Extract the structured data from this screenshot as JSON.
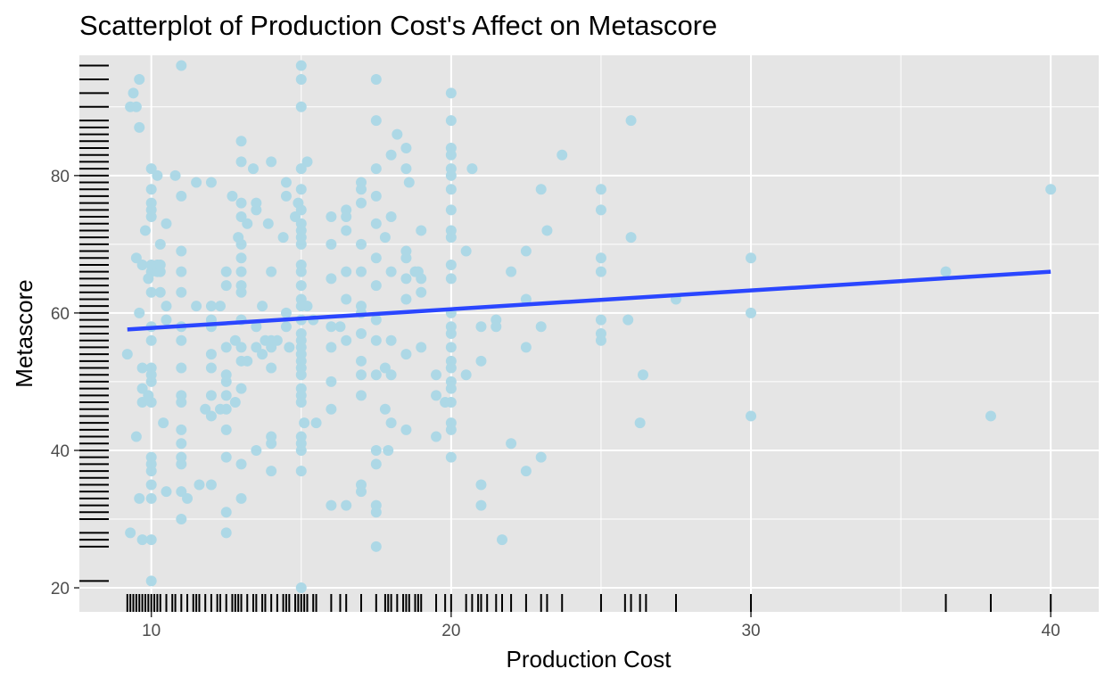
{
  "chart_data": {
    "type": "scatter",
    "title": "Scatterplot of Production Cost's Affect on Metascore",
    "xlabel": "Production Cost",
    "ylabel": "Metascore",
    "xlim": [
      7.6,
      41.6
    ],
    "ylim": [
      16.5,
      97.5
    ],
    "x_ticks": [
      10,
      20,
      30,
      40
    ],
    "y_ticks": [
      20,
      40,
      60,
      80
    ],
    "grid": true,
    "rug": true,
    "colors": {
      "points": "#add8e6",
      "trend": "#2a46ff",
      "panel": "#e5e5e5",
      "grid": "#ffffff",
      "rug": "#000000"
    },
    "trend_line": {
      "x": [
        9.2,
        40
      ],
      "y": [
        57.6,
        66.0
      ]
    },
    "points": [
      [
        9.2,
        54
      ],
      [
        9.3,
        90
      ],
      [
        9.3,
        28
      ],
      [
        9.4,
        92
      ],
      [
        9.5,
        90
      ],
      [
        9.5,
        68
      ],
      [
        9.5,
        42
      ],
      [
        9.6,
        94
      ],
      [
        9.6,
        87
      ],
      [
        9.6,
        60
      ],
      [
        9.6,
        33
      ],
      [
        9.7,
        67
      ],
      [
        9.7,
        52
      ],
      [
        9.7,
        49
      ],
      [
        9.7,
        47
      ],
      [
        9.7,
        27
      ],
      [
        10,
        81
      ],
      [
        10,
        78
      ],
      [
        10,
        76
      ],
      [
        10,
        75
      ],
      [
        10,
        74
      ],
      [
        10,
        67
      ],
      [
        10,
        66
      ],
      [
        10,
        63
      ],
      [
        10,
        58
      ],
      [
        10,
        56
      ],
      [
        10,
        52
      ],
      [
        10,
        51
      ],
      [
        10,
        50
      ],
      [
        10,
        47
      ],
      [
        10,
        39
      ],
      [
        10,
        38
      ],
      [
        10,
        37
      ],
      [
        10,
        35
      ],
      [
        10,
        33
      ],
      [
        10,
        27
      ],
      [
        10,
        21
      ],
      [
        9.9,
        65
      ],
      [
        9.8,
        72
      ],
      [
        9.9,
        48
      ],
      [
        10.2,
        80
      ],
      [
        10.2,
        67
      ],
      [
        10.2,
        66
      ],
      [
        10.3,
        70
      ],
      [
        10.3,
        67
      ],
      [
        10.3,
        66
      ],
      [
        10.3,
        63
      ],
      [
        10.4,
        44
      ],
      [
        10.5,
        73
      ],
      [
        10.5,
        61
      ],
      [
        10.5,
        59
      ],
      [
        10.5,
        34
      ],
      [
        10.8,
        80
      ],
      [
        11,
        96
      ],
      [
        11,
        77
      ],
      [
        11,
        69
      ],
      [
        11,
        66
      ],
      [
        11,
        63
      ],
      [
        11,
        58
      ],
      [
        11,
        56
      ],
      [
        11,
        52
      ],
      [
        11,
        48
      ],
      [
        11,
        47
      ],
      [
        11,
        43
      ],
      [
        11,
        41
      ],
      [
        11,
        39
      ],
      [
        11,
        38
      ],
      [
        11,
        34
      ],
      [
        11,
        30
      ],
      [
        11.2,
        33
      ],
      [
        11.5,
        79
      ],
      [
        11.5,
        61
      ],
      [
        11.6,
        35
      ],
      [
        11.8,
        46
      ],
      [
        12,
        79
      ],
      [
        12,
        61
      ],
      [
        12,
        59
      ],
      [
        12,
        58
      ],
      [
        12,
        54
      ],
      [
        12,
        52
      ],
      [
        12,
        48
      ],
      [
        12,
        45
      ],
      [
        12,
        35
      ],
      [
        12.3,
        61
      ],
      [
        12.3,
        46
      ],
      [
        12.5,
        66
      ],
      [
        12.5,
        64
      ],
      [
        12.5,
        55
      ],
      [
        12.5,
        51
      ],
      [
        12.5,
        50
      ],
      [
        12.5,
        48
      ],
      [
        12.5,
        46
      ],
      [
        12.5,
        43
      ],
      [
        12.5,
        39
      ],
      [
        12.5,
        31
      ],
      [
        12.5,
        28
      ],
      [
        12.7,
        77
      ],
      [
        12.8,
        56
      ],
      [
        12.8,
        47
      ],
      [
        12.9,
        71
      ],
      [
        13,
        85
      ],
      [
        13,
        82
      ],
      [
        13,
        76
      ],
      [
        13,
        74
      ],
      [
        13,
        70
      ],
      [
        13,
        68
      ],
      [
        13,
        66
      ],
      [
        13,
        64
      ],
      [
        13,
        63
      ],
      [
        13,
        59
      ],
      [
        13,
        55
      ],
      [
        13,
        53
      ],
      [
        13,
        49
      ],
      [
        13,
        38
      ],
      [
        13,
        33
      ],
      [
        13.2,
        73
      ],
      [
        13.2,
        53
      ],
      [
        13.4,
        81
      ],
      [
        13.5,
        76
      ],
      [
        13.5,
        75
      ],
      [
        13.5,
        58
      ],
      [
        13.5,
        55
      ],
      [
        13.5,
        40
      ],
      [
        13.7,
        61
      ],
      [
        13.7,
        54
      ],
      [
        13.8,
        56
      ],
      [
        13.9,
        73
      ],
      [
        14,
        82
      ],
      [
        14,
        66
      ],
      [
        14,
        56
      ],
      [
        14,
        55
      ],
      [
        14,
        52
      ],
      [
        14,
        42
      ],
      [
        14,
        41
      ],
      [
        14,
        37
      ],
      [
        14.2,
        56
      ],
      [
        14.4,
        71
      ],
      [
        14.5,
        79
      ],
      [
        14.5,
        77
      ],
      [
        14.5,
        60
      ],
      [
        14.5,
        58
      ],
      [
        14.6,
        55
      ],
      [
        14.8,
        74
      ],
      [
        14.9,
        76
      ],
      [
        15,
        96
      ],
      [
        15,
        94
      ],
      [
        15,
        90
      ],
      [
        15,
        81
      ],
      [
        15,
        78
      ],
      [
        15,
        75
      ],
      [
        15,
        73
      ],
      [
        15,
        72
      ],
      [
        15,
        71
      ],
      [
        15,
        70
      ],
      [
        15,
        67
      ],
      [
        15,
        66
      ],
      [
        15,
        64
      ],
      [
        15,
        62
      ],
      [
        15,
        61
      ],
      [
        15,
        59
      ],
      [
        15,
        57
      ],
      [
        15,
        56
      ],
      [
        15,
        55
      ],
      [
        15,
        54
      ],
      [
        15,
        53
      ],
      [
        15,
        52
      ],
      [
        15,
        51
      ],
      [
        15,
        49
      ],
      [
        15,
        48
      ],
      [
        15,
        47
      ],
      [
        15,
        42
      ],
      [
        15,
        41
      ],
      [
        15,
        40
      ],
      [
        15,
        37
      ],
      [
        15,
        20
      ],
      [
        15.2,
        82
      ],
      [
        15.2,
        61
      ],
      [
        15.1,
        44
      ],
      [
        15.4,
        59
      ],
      [
        15.5,
        44
      ],
      [
        16,
        74
      ],
      [
        16,
        70
      ],
      [
        16,
        65
      ],
      [
        16,
        58
      ],
      [
        16,
        55
      ],
      [
        16,
        50
      ],
      [
        16,
        46
      ],
      [
        16,
        32
      ],
      [
        16.3,
        58
      ],
      [
        16.5,
        75
      ],
      [
        16.5,
        74
      ],
      [
        16.5,
        72
      ],
      [
        16.5,
        66
      ],
      [
        16.5,
        62
      ],
      [
        16.5,
        56
      ],
      [
        16.5,
        32
      ],
      [
        17,
        79
      ],
      [
        17,
        78
      ],
      [
        17,
        76
      ],
      [
        17,
        70
      ],
      [
        17,
        66
      ],
      [
        17,
        61
      ],
      [
        17,
        60
      ],
      [
        17,
        57
      ],
      [
        17,
        53
      ],
      [
        17,
        51
      ],
      [
        17,
        48
      ],
      [
        17,
        35
      ],
      [
        17,
        34
      ],
      [
        17.5,
        94
      ],
      [
        17.5,
        88
      ],
      [
        17.5,
        81
      ],
      [
        17.5,
        77
      ],
      [
        17.5,
        73
      ],
      [
        17.5,
        68
      ],
      [
        17.5,
        64
      ],
      [
        17.5,
        59
      ],
      [
        17.5,
        56
      ],
      [
        17.5,
        51
      ],
      [
        17.5,
        40
      ],
      [
        17.5,
        38
      ],
      [
        17.5,
        32
      ],
      [
        17.5,
        31
      ],
      [
        17.5,
        26
      ],
      [
        17.8,
        71
      ],
      [
        17.8,
        52
      ],
      [
        17.8,
        46
      ],
      [
        17.9,
        40
      ],
      [
        18,
        83
      ],
      [
        18,
        74
      ],
      [
        18,
        66
      ],
      [
        18,
        56
      ],
      [
        18,
        51
      ],
      [
        18,
        44
      ],
      [
        18.2,
        86
      ],
      [
        18.5,
        84
      ],
      [
        18.5,
        81
      ],
      [
        18.5,
        69
      ],
      [
        18.5,
        68
      ],
      [
        18.5,
        65
      ],
      [
        18.5,
        62
      ],
      [
        18.5,
        54
      ],
      [
        18.5,
        43
      ],
      [
        18.6,
        79
      ],
      [
        18.8,
        66
      ],
      [
        18.9,
        66
      ],
      [
        19,
        72
      ],
      [
        19,
        65
      ],
      [
        19,
        63
      ],
      [
        19,
        55
      ],
      [
        19.5,
        51
      ],
      [
        19.5,
        48
      ],
      [
        19.5,
        42
      ],
      [
        19.8,
        47
      ],
      [
        20,
        92
      ],
      [
        20,
        88
      ],
      [
        20,
        84
      ],
      [
        20,
        83
      ],
      [
        20,
        81
      ],
      [
        20,
        80
      ],
      [
        20,
        78
      ],
      [
        20,
        75
      ],
      [
        20,
        72
      ],
      [
        20,
        71
      ],
      [
        20,
        67
      ],
      [
        20,
        65
      ],
      [
        20,
        60
      ],
      [
        20,
        58
      ],
      [
        20,
        57
      ],
      [
        20,
        55
      ],
      [
        20,
        53
      ],
      [
        20,
        52
      ],
      [
        20,
        50
      ],
      [
        20,
        49
      ],
      [
        20,
        47
      ],
      [
        20,
        44
      ],
      [
        20,
        43
      ],
      [
        20,
        39
      ],
      [
        20.5,
        69
      ],
      [
        20.5,
        51
      ],
      [
        20.7,
        81
      ],
      [
        21,
        58
      ],
      [
        21,
        53
      ],
      [
        21,
        35
      ],
      [
        21,
        32
      ],
      [
        21.5,
        59
      ],
      [
        21.5,
        58
      ],
      [
        21.7,
        27
      ],
      [
        22,
        66
      ],
      [
        22,
        41
      ],
      [
        22.5,
        69
      ],
      [
        22.5,
        62
      ],
      [
        22.5,
        55
      ],
      [
        22.5,
        37
      ],
      [
        23,
        78
      ],
      [
        23,
        58
      ],
      [
        23,
        39
      ],
      [
        23.2,
        72
      ],
      [
        23.7,
        83
      ],
      [
        25,
        78
      ],
      [
        25,
        75
      ],
      [
        25,
        68
      ],
      [
        25,
        66
      ],
      [
        25,
        59
      ],
      [
        25,
        57
      ],
      [
        25,
        56
      ],
      [
        25.9,
        59
      ],
      [
        26,
        88
      ],
      [
        26,
        71
      ],
      [
        26.4,
        51
      ],
      [
        26.3,
        44
      ],
      [
        27.5,
        62
      ],
      [
        30,
        68
      ],
      [
        30,
        60
      ],
      [
        30,
        45
      ],
      [
        36.5,
        66
      ],
      [
        38,
        45
      ],
      [
        40,
        78
      ]
    ],
    "rug_x": [
      9.2,
      9.3,
      9.4,
      9.5,
      9.6,
      9.7,
      9.8,
      9.9,
      10,
      10.1,
      10.2,
      10.3,
      10.5,
      10.7,
      10.8,
      11,
      11.2,
      11.4,
      11.5,
      11.6,
      11.8,
      12,
      12.2,
      12.3,
      12.5,
      12.7,
      12.8,
      12.9,
      13,
      13.2,
      13.4,
      13.5,
      13.7,
      13.8,
      14,
      14.2,
      14.4,
      14.5,
      14.6,
      14.8,
      14.9,
      15,
      15.1,
      15.2,
      15.4,
      15.5,
      16,
      16.3,
      16.5,
      17,
      17.5,
      17.8,
      17.9,
      18,
      18.2,
      18.4,
      18.5,
      18.6,
      18.8,
      18.9,
      19,
      19.5,
      19.8,
      20,
      20.5,
      20.7,
      20.9,
      21,
      21.2,
      21.5,
      21.7,
      22,
      22.5,
      23,
      23.2,
      23.7,
      25,
      25.8,
      26,
      26.3,
      26.5,
      27.5,
      30,
      36.5,
      38,
      40
    ],
    "rug_y": [
      21,
      26,
      27,
      28,
      30,
      31,
      32,
      33,
      34,
      35,
      36,
      37,
      38,
      39,
      40,
      41,
      42,
      43,
      44,
      45,
      46,
      47,
      48,
      49,
      50,
      51,
      52,
      53,
      54,
      55,
      56,
      57,
      58,
      59,
      60,
      61,
      62,
      63,
      64,
      65,
      66,
      67,
      68,
      69,
      70,
      71,
      72,
      73,
      74,
      75,
      76,
      77,
      78,
      79,
      80,
      81,
      82,
      83,
      84,
      85,
      86,
      87,
      88,
      90,
      92,
      94,
      96
    ]
  }
}
